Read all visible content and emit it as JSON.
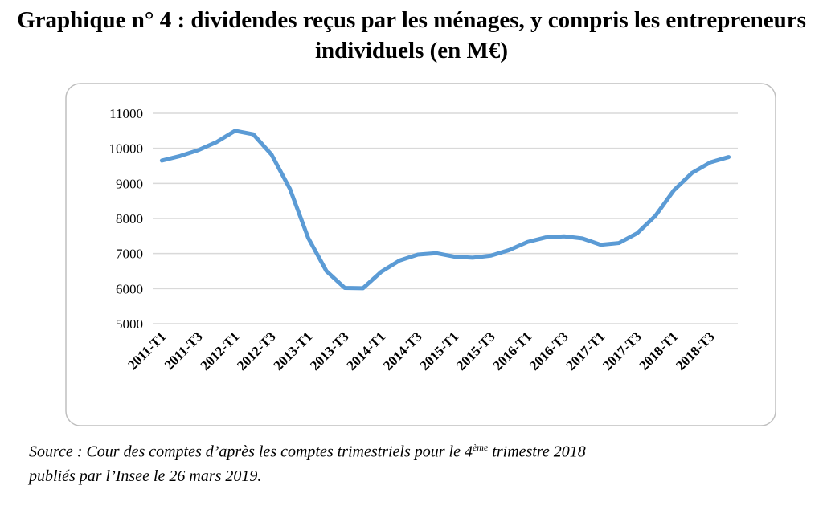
{
  "chart_data": {
    "type": "line",
    "title": "Graphique n° 4 : dividendes reçus par les ménages, y compris les entrepreneurs individuels (en M€)",
    "categories": [
      "2011-T1",
      null,
      "2011-T3",
      null,
      "2012-T1",
      null,
      "2012-T3",
      null,
      "2013-T1",
      null,
      "2013-T3",
      null,
      "2014-T1",
      null,
      "2014-T3",
      null,
      "2015-T1",
      null,
      "2015-T3",
      null,
      "2016-T1",
      null,
      "2016-T3",
      null,
      "2017-T1",
      null,
      "2017-T3",
      null,
      "2018-T1",
      null,
      "2018-T3",
      null
    ],
    "series": [
      {
        "color": "#5b9bd5",
        "values": [
          9650,
          9780,
          9950,
          10180,
          10500,
          10400,
          9820,
          8850,
          7450,
          6500,
          6020,
          6010,
          6480,
          6800,
          6970,
          7010,
          6910,
          6880,
          6940,
          7100,
          7330,
          7460,
          7490,
          7430,
          7250,
          7300,
          7580,
          8080,
          8800,
          9300,
          9600,
          9750
        ]
      }
    ],
    "ylim": [
      5000,
      11000
    ],
    "yticks": [
      5000,
      6000,
      7000,
      8000,
      9000,
      10000,
      11000
    ],
    "grid": true,
    "source": {
      "line_1_start": "Source : Cour des comptes d’après les comptes trimestriels pour le 4",
      "superscript": "ème",
      "line_1_end": " trimestre 2018",
      "line_2": "publiés par l’Insee le 26 mars 2019."
    }
  }
}
